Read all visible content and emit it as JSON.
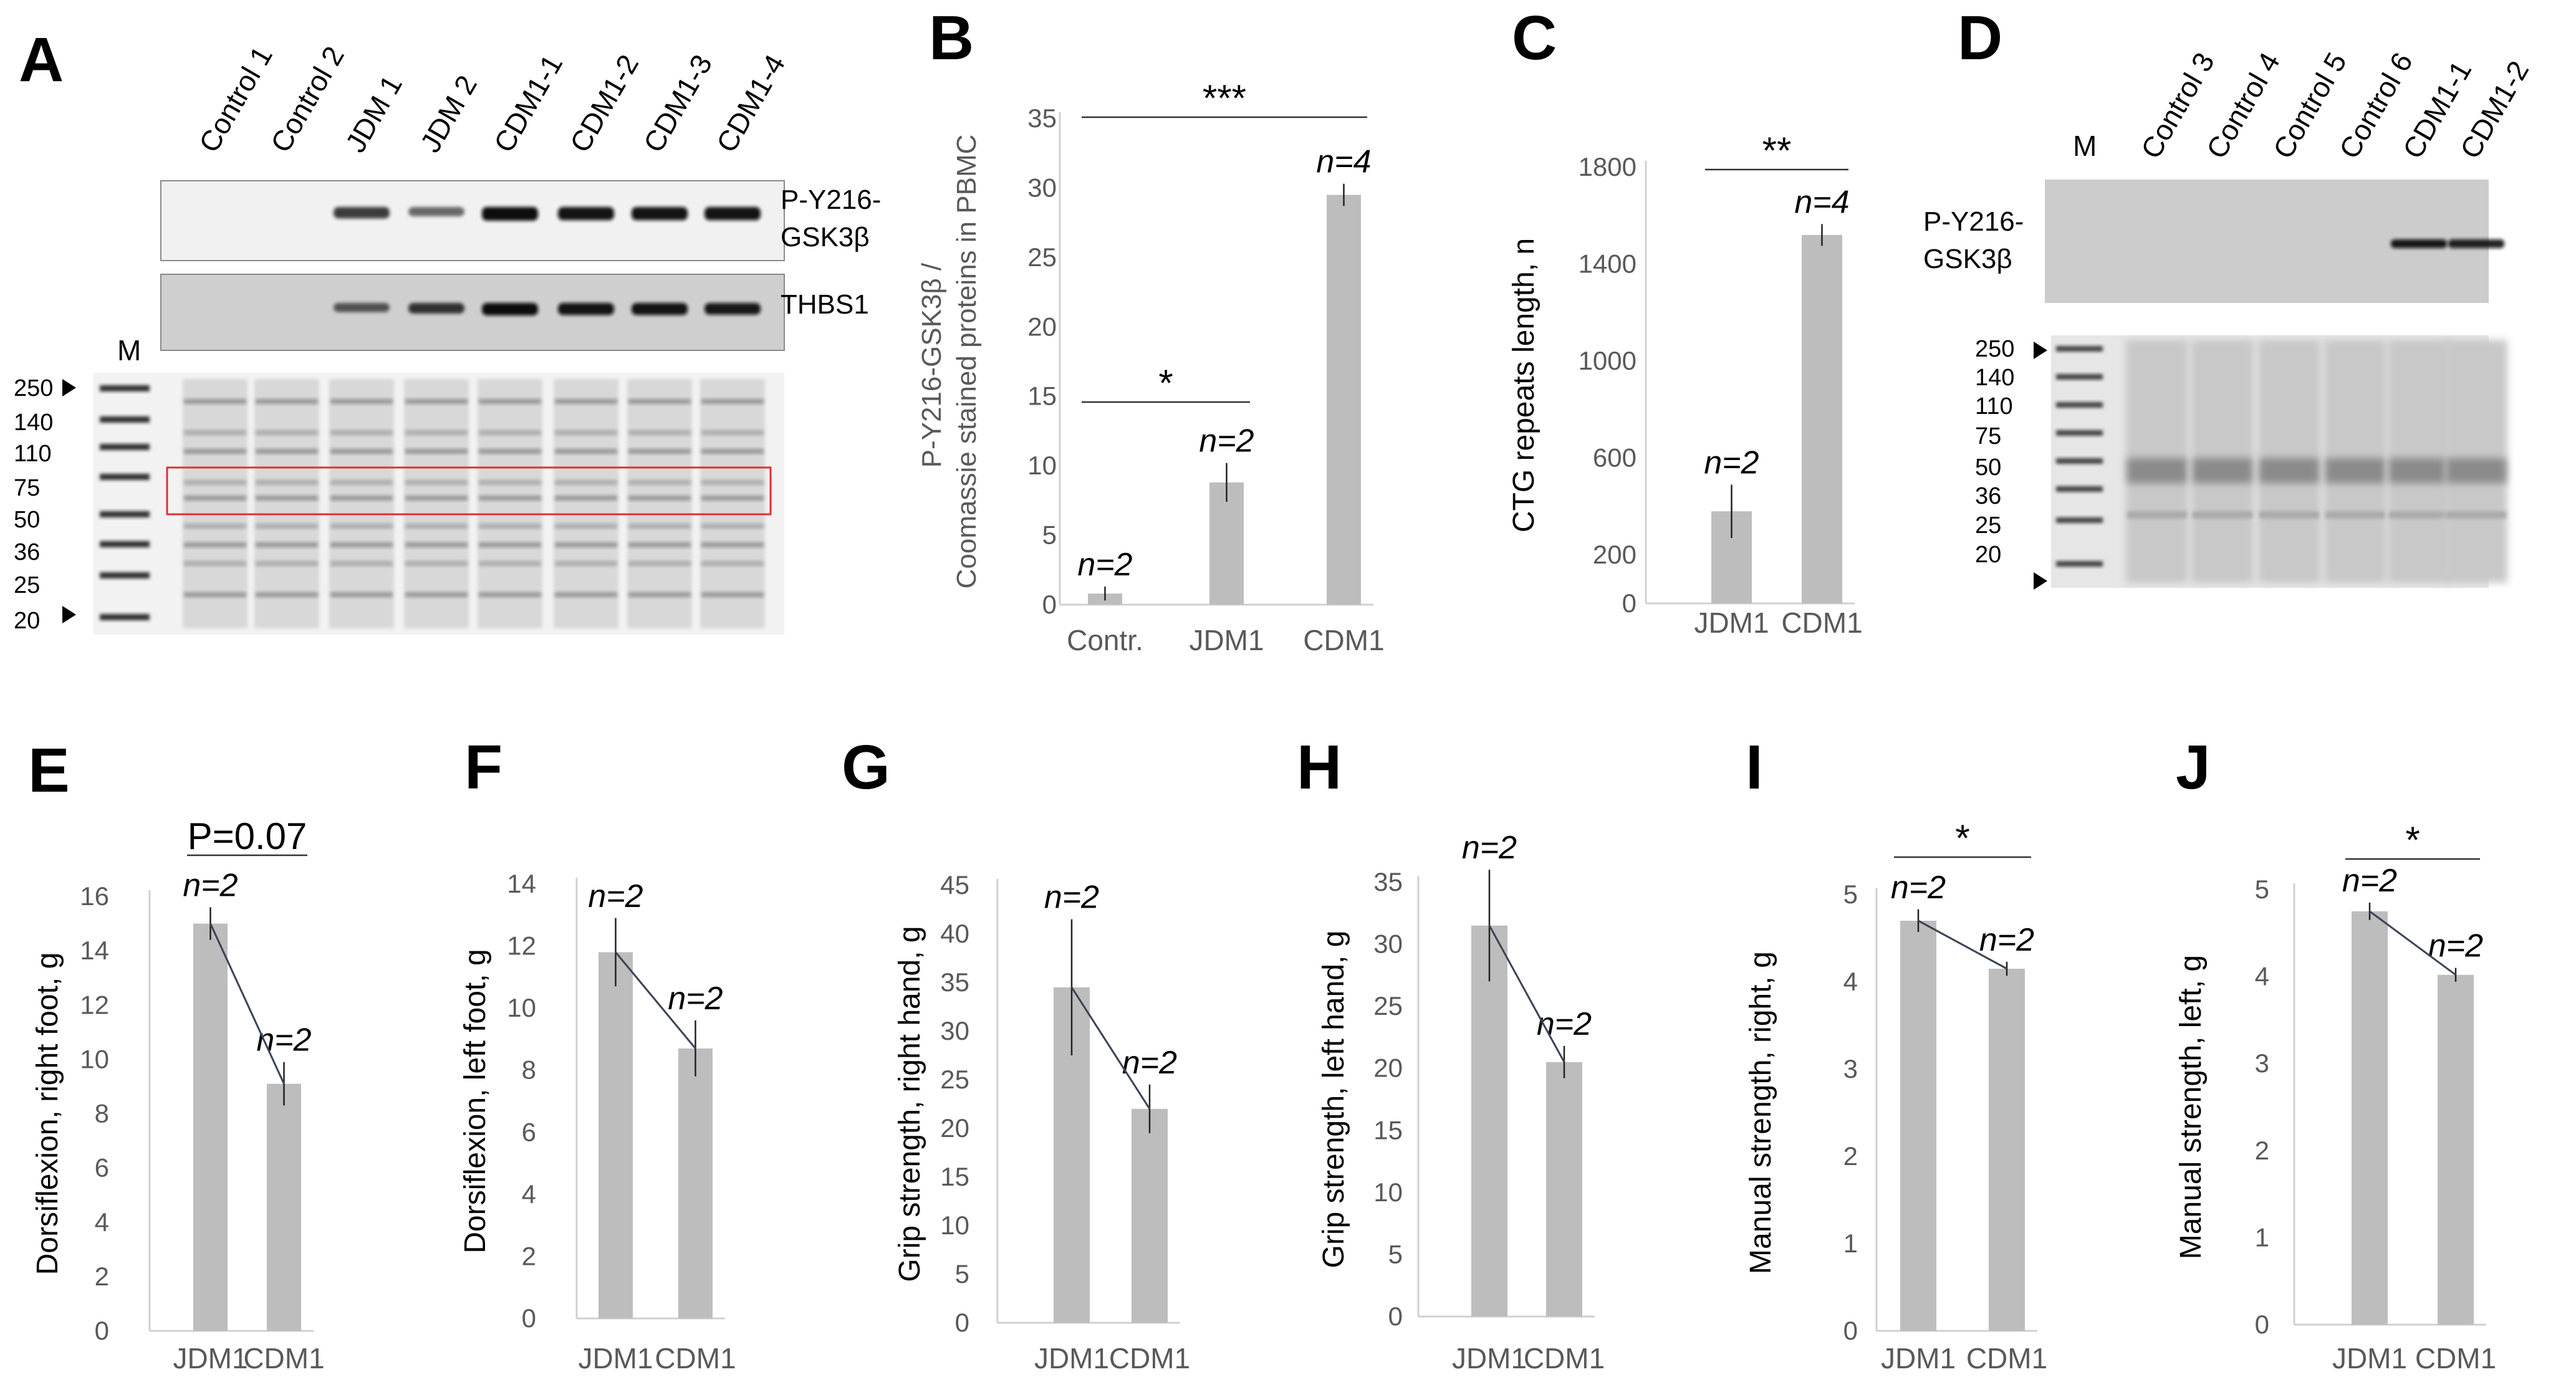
{
  "panels": [
    "A",
    "B",
    "C",
    "D",
    "E",
    "F",
    "G",
    "H",
    "I",
    "J"
  ],
  "blotA": {
    "lanes": [
      "Control 1",
      "Control 2",
      "JDM 1",
      "JDM 2",
      "CDM1-1",
      "CDM1-2",
      "CDM1-3",
      "CDM1-4"
    ],
    "marker": "M",
    "mw": [
      "250",
      "140",
      "110",
      "75",
      "50",
      "36",
      "25",
      "20"
    ],
    "protein1_line1": "P-Y216-",
    "protein1_line2": "GSK3β",
    "protein2": "THBS1",
    "band_intensity_p": [
      0,
      0,
      0.75,
      0.5,
      1,
      0.95,
      0.95,
      0.95
    ],
    "band_intensity_t": [
      0,
      0,
      0.55,
      0.75,
      1,
      0.95,
      0.95,
      0.9
    ]
  },
  "blotD": {
    "lanes": [
      "Control 3",
      "Control 4",
      "Control 5",
      "Control 6",
      "CDM1-1",
      "CDM1-2"
    ],
    "marker": "M",
    "mw": [
      "250",
      "140",
      "110",
      "75",
      "50",
      "36",
      "25",
      "20"
    ],
    "protein_line1": "P-Y216-",
    "protein_line2": "GSK3β",
    "band_intensity": [
      0,
      0,
      0,
      0,
      0.9,
      0.8
    ]
  },
  "chart_data": [
    {
      "id": "B",
      "type": "bar",
      "categories": [
        "Contr.",
        "JDM1",
        "CDM1"
      ],
      "values": [
        0.8,
        8.8,
        29.5
      ],
      "errors": [
        0.5,
        1.4,
        0.8
      ],
      "n_labels": [
        "n=2",
        "n=2",
        "n=4"
      ],
      "ylabel": "P-Y216-GSK3β / Coomassie stained proteins in PBMC",
      "ylim": [
        0,
        35
      ],
      "yticks": [
        0,
        5,
        10,
        15,
        20,
        25,
        30,
        35
      ],
      "sig": [
        {
          "from": 0,
          "to": 1,
          "label": "*"
        },
        {
          "from": 0,
          "to": 2,
          "label": "***"
        }
      ]
    },
    {
      "id": "C",
      "type": "bar",
      "categories": [
        "JDM1",
        "CDM1"
      ],
      "values": [
        380,
        1520
      ],
      "errors": [
        110,
        45
      ],
      "n_labels": [
        "n=2",
        "n=4"
      ],
      "ylabel": "CTG repeats length, n",
      "ylim": [
        0,
        1800
      ],
      "yticks": [
        0,
        200,
        600,
        1000,
        1400,
        1800
      ],
      "sig": [
        {
          "from": 0,
          "to": 1,
          "label": "**"
        }
      ]
    },
    {
      "id": "E",
      "type": "bar",
      "categories": [
        "JDM1",
        "CDM1"
      ],
      "values": [
        15,
        9.1
      ],
      "errors": [
        0.6,
        0.8
      ],
      "n_labels": [
        "n=2",
        "n=2"
      ],
      "ylabel": "Dorsiflexion, right foot, g",
      "ylim": [
        0,
        16
      ],
      "yticks": [
        0,
        2,
        4,
        6,
        8,
        10,
        12,
        14,
        16
      ],
      "sig": [
        {
          "from": 0,
          "to": 1,
          "label": "P=0.07"
        }
      ]
    },
    {
      "id": "F",
      "type": "bar",
      "categories": [
        "JDM1",
        "CDM1"
      ],
      "values": [
        11.8,
        8.7
      ],
      "errors": [
        1.1,
        0.9
      ],
      "n_labels": [
        "n=2",
        "n=2"
      ],
      "ylabel": "Dorsiflexion, left foot, g",
      "ylim": [
        0,
        14
      ],
      "yticks": [
        0,
        2,
        4,
        6,
        8,
        10,
        12,
        14
      ],
      "sig": []
    },
    {
      "id": "G",
      "type": "bar",
      "categories": [
        "JDM1",
        "CDM1"
      ],
      "values": [
        34.5,
        22
      ],
      "errors": [
        7,
        2.5
      ],
      "n_labels": [
        "n=2",
        "n=2"
      ],
      "ylabel": "Grip strength, right hand, g",
      "ylim": [
        0,
        45
      ],
      "yticks": [
        0,
        5,
        10,
        15,
        20,
        25,
        30,
        35,
        40,
        45
      ],
      "sig": []
    },
    {
      "id": "H",
      "type": "bar",
      "categories": [
        "JDM1",
        "CDM1"
      ],
      "values": [
        31.5,
        20.5
      ],
      "errors": [
        4.5,
        1.3
      ],
      "n_labels": [
        "n=2",
        "n=2"
      ],
      "ylabel": "Grip strength, left hand, g",
      "ylim": [
        0,
        35
      ],
      "yticks": [
        0,
        5,
        10,
        15,
        20,
        25,
        30,
        35
      ],
      "sig": []
    },
    {
      "id": "I",
      "type": "bar",
      "categories": [
        "JDM1",
        "CDM1"
      ],
      "values": [
        4.7,
        4.15
      ],
      "errors": [
        0.13,
        0.08
      ],
      "n_labels": [
        "n=2",
        "n=2"
      ],
      "ylabel": "Manual strength, right, g",
      "ylim": [
        0,
        5
      ],
      "yticks": [
        0,
        1,
        2,
        3,
        4,
        5
      ],
      "sig": [
        {
          "from": 0,
          "to": 1,
          "label": "*"
        }
      ]
    },
    {
      "id": "J",
      "type": "bar",
      "categories": [
        "JDM1",
        "CDM1"
      ],
      "values": [
        4.75,
        4.02
      ],
      "errors": [
        0.1,
        0.08
      ],
      "n_labels": [
        "n=2",
        "n=2"
      ],
      "ylabel": "Manual strength, left, g",
      "ylim": [
        0,
        5
      ],
      "yticks": [
        0,
        1,
        2,
        3,
        4,
        5
      ],
      "sig": [
        {
          "from": 0,
          "to": 1,
          "label": "*"
        }
      ]
    }
  ]
}
